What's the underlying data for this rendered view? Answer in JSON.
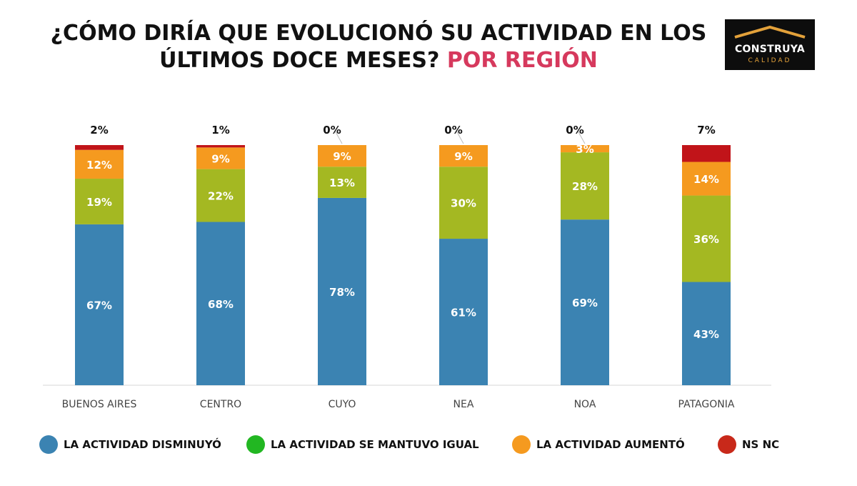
{
  "title": {
    "main": "¿CÓMO DIRÍA QUE EVOLUCIONÓ SU ACTIVIDAD EN LOS ÚLTIMOS DOCE MESES?",
    "accent": "POR REGIÓN"
  },
  "logo": {
    "brand": "CONSTRUYA",
    "sub": "CALIDAD",
    "icon": "roof-icon"
  },
  "colors": {
    "disminuyo": "#3b83b2",
    "igual": "#a4b822",
    "aumento": "#f59a1f",
    "nsnc": "#c11419",
    "legend_igual": "#22b722",
    "legend_nsnc": "#c8291a",
    "title_accent": "#d6395d"
  },
  "chart_data": {
    "type": "bar",
    "stacked": true,
    "categories": [
      "BUENOS AIRES",
      "CENTRO",
      "CUYO",
      "NEA",
      "NOA",
      "PATAGONIA"
    ],
    "series": [
      {
        "name": "LA ACTIVIDAD DISMINUYÓ",
        "key": "disminuyo",
        "values": [
          67,
          68,
          78,
          61,
          69,
          43
        ]
      },
      {
        "name": "LA ACTIVIDAD SE MANTUVO IGUAL",
        "key": "igual",
        "values": [
          19,
          22,
          13,
          30,
          28,
          36
        ]
      },
      {
        "name": "LA ACTIVIDAD AUMENTÓ",
        "key": "aumento",
        "values": [
          12,
          9,
          9,
          9,
          3,
          14
        ]
      },
      {
        "name": "NS NC",
        "key": "nsnc",
        "values": [
          2,
          1,
          0,
          0,
          0,
          7
        ]
      }
    ],
    "data_labels": [
      [
        "67%",
        "68%",
        "78%",
        "61%",
        "69%",
        "43%"
      ],
      [
        "19%",
        "22%",
        "13%",
        "30%",
        "28%",
        "36%"
      ],
      [
        "12%",
        "9%",
        "9%",
        "9%",
        "3%",
        "14%"
      ],
      [
        "2%",
        "1%",
        "0%",
        "0%",
        "0%",
        "7%"
      ]
    ],
    "ylim": [
      0,
      100
    ],
    "xlabel": "",
    "ylabel": "",
    "grid": false,
    "legend_position": "bottom"
  },
  "legend": [
    {
      "label": "LA ACTIVIDAD DISMINUYÓ",
      "color_key": "disminuyo"
    },
    {
      "label": "LA ACTIVIDAD SE MANTUVO IGUAL",
      "color_key": "legend_igual"
    },
    {
      "label": "LA ACTIVIDAD AUMENTÓ",
      "color_key": "aumento"
    },
    {
      "label": "NS NC",
      "color_key": "legend_nsnc"
    }
  ]
}
